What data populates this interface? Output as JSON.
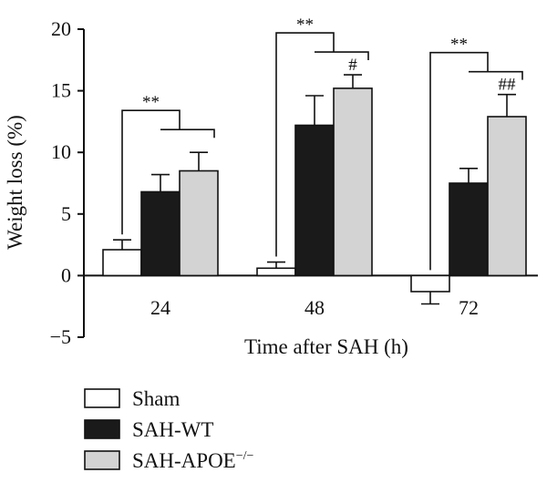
{
  "chart_data": {
    "type": "bar",
    "xlabel": "Time after SAH (h)",
    "ylabel": "Weight loss (%)",
    "ylim": [
      -5,
      20
    ],
    "yticks": [
      -5,
      0,
      5,
      10,
      15,
      20
    ],
    "categories": [
      "24",
      "48",
      "72"
    ],
    "series": [
      {
        "name": "Sham",
        "color": "#ffffff",
        "values": [
          2.1,
          0.6,
          -1.3
        ],
        "errors": [
          0.8,
          0.5,
          1.0
        ]
      },
      {
        "name": "SAH-WT",
        "color": "#1a1a1a",
        "values": [
          6.8,
          12.2,
          7.5
        ],
        "errors": [
          1.4,
          2.4,
          1.2
        ]
      },
      {
        "name": "SAH-APOE",
        "name_sup": "−/−",
        "color": "#d3d3d3",
        "values": [
          8.5,
          15.2,
          12.9
        ],
        "errors": [
          1.5,
          1.1,
          1.8
        ]
      }
    ],
    "significance": [
      {
        "group": 0,
        "outer": "**",
        "inner": ""
      },
      {
        "group": 1,
        "outer": "**",
        "inner": "#"
      },
      {
        "group": 2,
        "outer": "**",
        "inner": "##"
      }
    ],
    "legend_position": "bottom-left",
    "grid": false
  }
}
